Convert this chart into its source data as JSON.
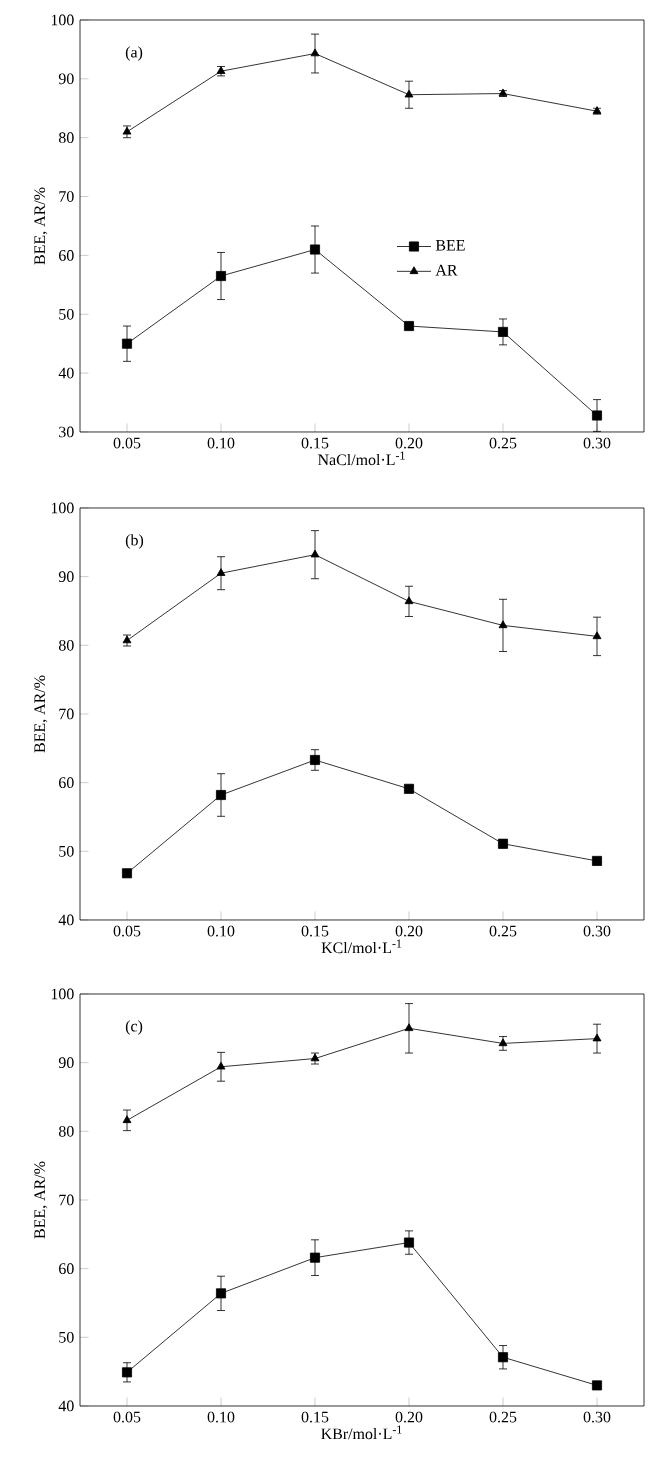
{
  "chart_data": [
    {
      "type": "line",
      "annotations": [
        "(a)"
      ],
      "xlabel": "NaCl/mol·L$^{-1}$",
      "ylabel": "BEE, AR/%",
      "categories": [
        "0.05",
        "0.10",
        "0.15",
        "0.20",
        "0.25",
        "0.30"
      ],
      "ylim": [
        30,
        100
      ],
      "yticks": [
        30,
        40,
        50,
        60,
        70,
        80,
        90,
        100
      ],
      "legend": "center",
      "line_style": "solid",
      "series": [
        {
          "name": "BEE",
          "color": "#000000",
          "marker": "square",
          "values": [
            45,
            56.5,
            61,
            48,
            47,
            32.8
          ],
          "errors": [
            3,
            4,
            4,
            0.5,
            2.2,
            2.7
          ]
        },
        {
          "name": "AR",
          "color": "#000000",
          "marker": "triangle",
          "values": [
            81,
            91.3,
            94.3,
            87.3,
            87.5,
            84.5
          ],
          "errors": [
            1,
            0.8,
            3.3,
            2.3,
            0.5,
            0.5
          ]
        }
      ]
    },
    {
      "type": "line",
      "annotations": [
        "(b)"
      ],
      "xlabel": "KCl/mol·L$^{-1}$",
      "ylabel": "BEE, AR/%",
      "categories": [
        "0.05",
        "0.10",
        "0.15",
        "0.20",
        "0.25",
        "0.30"
      ],
      "ylim": [
        40,
        100
      ],
      "yticks": [
        40,
        50,
        60,
        70,
        80,
        90,
        100
      ],
      "line_style": "solid",
      "series": [
        {
          "color": "#000000",
          "marker": "square",
          "values": [
            46.8,
            58.2,
            63.3,
            59.1,
            51.1,
            48.6
          ],
          "errors": [
            0.3,
            3.1,
            1.5,
            0.4,
            0.6,
            0.5
          ]
        },
        {
          "color": "#000000",
          "marker": "triangle",
          "values": [
            80.7,
            90.5,
            93.2,
            86.4,
            82.9,
            81.3
          ],
          "errors": [
            0.8,
            2.4,
            3.5,
            2.2,
            3.8,
            2.8
          ]
        }
      ]
    },
    {
      "type": "line",
      "annotations": [
        "(c)"
      ],
      "xlabel": "KBr/mol·L$^{-1}$",
      "ylabel": "BEE, AR/%",
      "categories": [
        "0.05",
        "0.10",
        "0.15",
        "0.20",
        "0.25",
        "0.30"
      ],
      "ylim": [
        40,
        100
      ],
      "yticks": [
        40,
        50,
        60,
        70,
        80,
        90,
        100
      ],
      "line_style": "solid",
      "series": [
        {
          "color": "#000000",
          "marker": "square",
          "values": [
            44.9,
            56.4,
            61.6,
            63.8,
            47.1,
            43
          ],
          "errors": [
            1.4,
            2.5,
            2.6,
            1.7,
            1.7,
            0.3
          ]
        },
        {
          "color": "#000000",
          "marker": "triangle",
          "values": [
            81.6,
            89.4,
            90.6,
            95,
            92.8,
            93.5
          ],
          "errors": [
            1.5,
            2.1,
            0.8,
            3.6,
            1,
            2.1
          ]
        }
      ]
    }
  ]
}
